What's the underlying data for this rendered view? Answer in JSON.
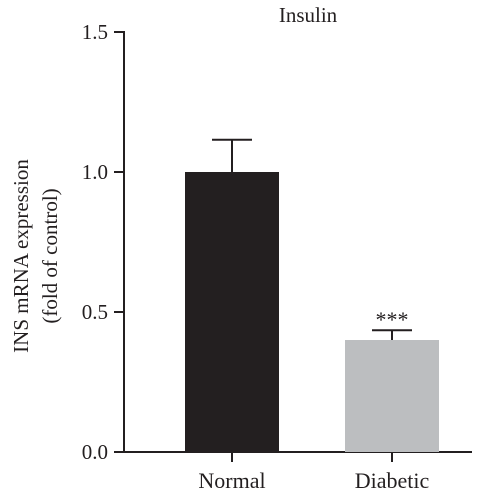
{
  "chart_data": {
    "type": "bar",
    "title": "Insulin",
    "ylabel_lines": [
      "INS mRNA expression",
      "(fold of control)"
    ],
    "xlabel": "",
    "categories": [
      "Normal",
      "Diabetic"
    ],
    "values": [
      1.0,
      0.4
    ],
    "errors": [
      0.115,
      0.035
    ],
    "bar_colors": [
      "#231f20",
      "#bcbec0"
    ],
    "significance": [
      "",
      "***"
    ],
    "ylim": [
      0,
      1.5
    ],
    "yticks": [
      0.0,
      0.5,
      1.0,
      1.5
    ],
    "ytick_labels": [
      "0.0",
      "0.5",
      "1.0",
      "1.5"
    ],
    "grid": false,
    "legend": "none"
  }
}
